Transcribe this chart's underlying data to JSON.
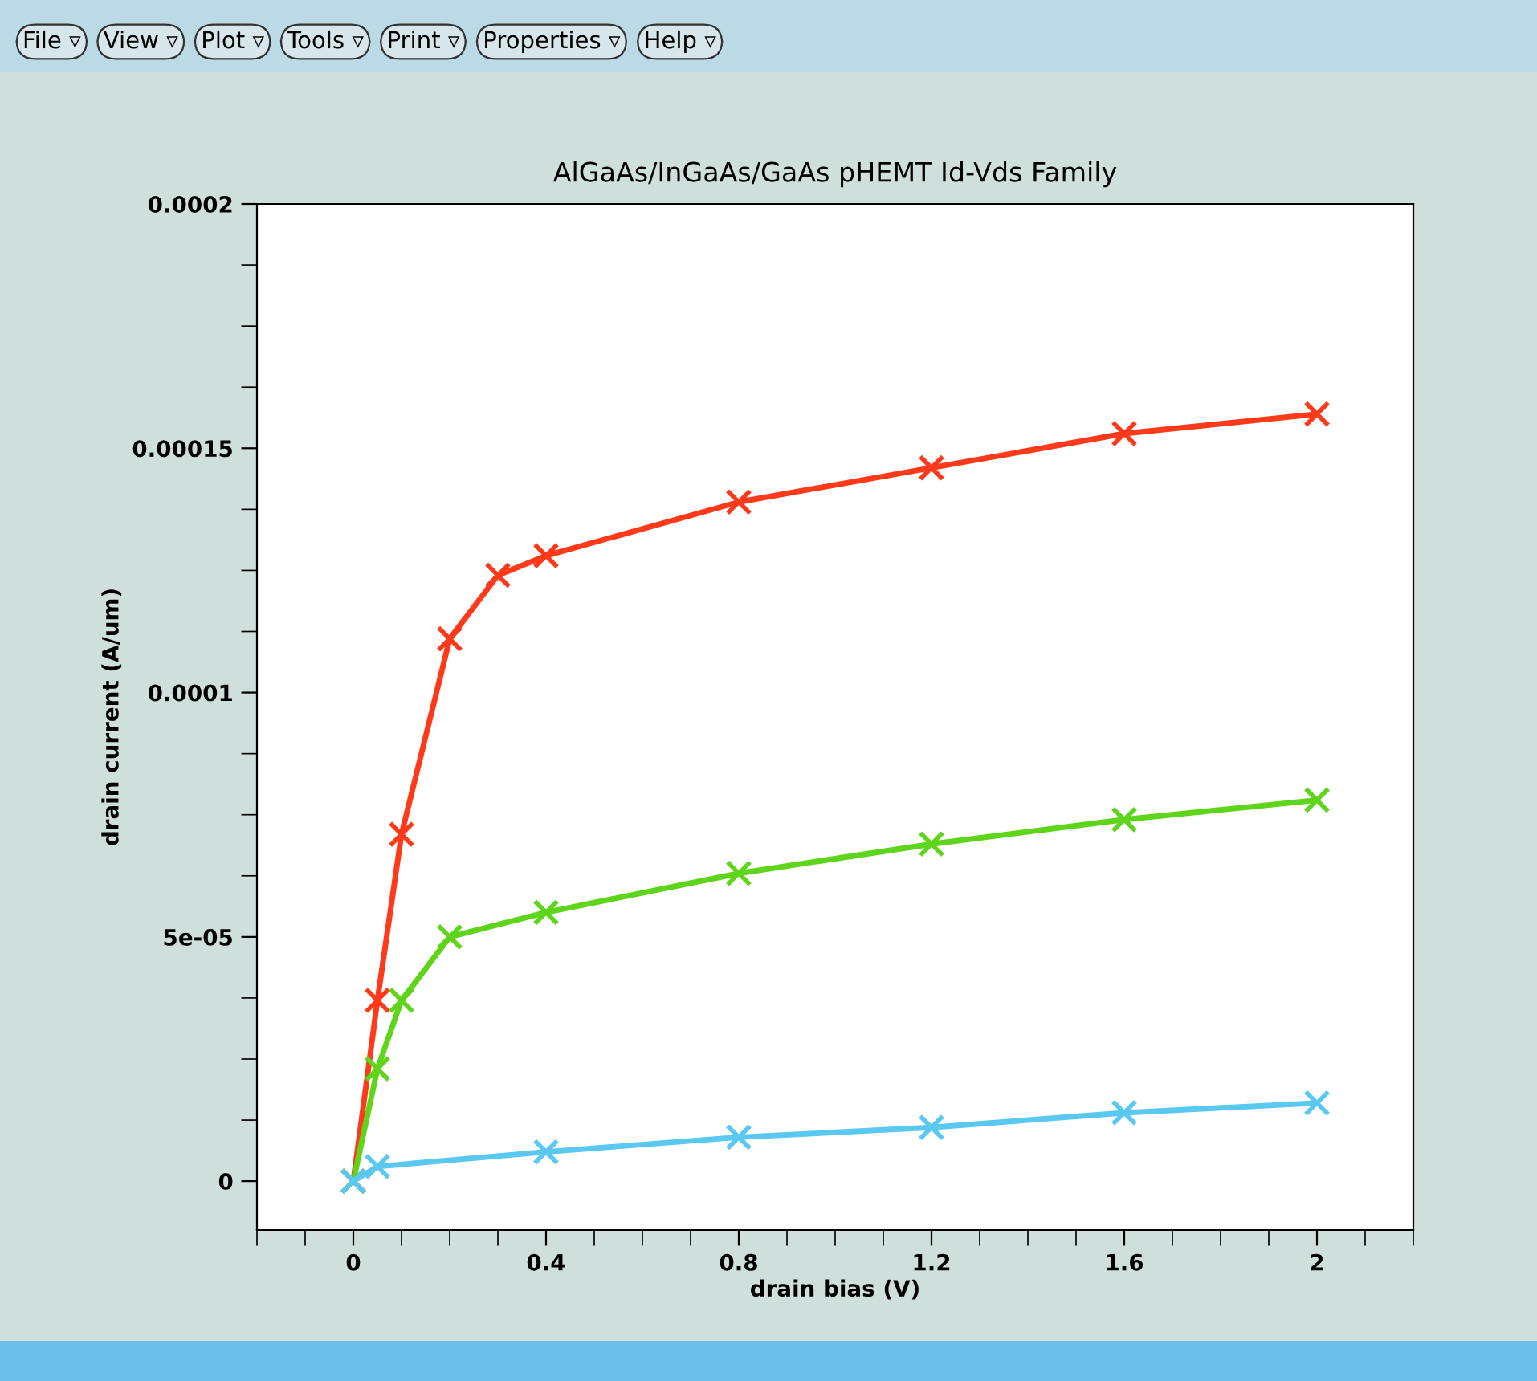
{
  "chart_data": {
    "type": "line",
    "title": "AlGaAs/InGaAs/GaAs pHEMT Id-Vds Family",
    "xlabel": "drain bias (V)",
    "ylabel": "drain current (A/um)",
    "annotations": [
      "File ▿",
      "View ▿",
      "Plot ▿",
      "Tools ▿",
      "Print ▿",
      "Properties ▿",
      "Help ▿"
    ],
    "series": [
      {
        "color": "#ff3a1a",
        "x": [
          0,
          0.05,
          0.1,
          0.2,
          0.3,
          0.4,
          0.8,
          1.2,
          1.6,
          2.0
        ],
        "values": [
          0,
          3.7e-05,
          7.1e-05,
          0.000111,
          0.000124,
          0.000128,
          0.000139,
          0.000146,
          0.000153,
          0.000157
        ]
      },
      {
        "color": "#5ed41a",
        "x": [
          0,
          0.05,
          0.1,
          0.2,
          0.4,
          0.8,
          1.2,
          1.6,
          2.0
        ],
        "values": [
          0,
          2.3e-05,
          3.7e-05,
          5e-05,
          5.5e-05,
          6.3e-05,
          6.9e-05,
          7.4e-05,
          7.8e-05
        ]
      },
      {
        "color": "#5ac8f0",
        "x": [
          0,
          0.05,
          0.4,
          0.8,
          1.2,
          1.6,
          2.0
        ],
        "values": [
          0,
          3e-06,
          6e-06,
          9e-06,
          1.1e-05,
          1.4e-05,
          1.6e-05
        ]
      }
    ],
    "xlim": [
      -0.2,
      2.2
    ],
    "xticks": [
      0,
      0.4,
      0.8,
      1.2,
      1.6,
      2
    ],
    "ylim": [
      -1e-05,
      0.0002
    ],
    "yticks": [
      0,
      {
        "value": 5e-05,
        "label": "5e-05"
      },
      {
        "value": 0.0001,
        "label": "0.0001"
      },
      {
        "value": 0.00015,
        "label": "0.00015"
      },
      {
        "value": 0.0002,
        "label": "0.0002"
      }
    ],
    "marker": "cross",
    "line_style": "solid",
    "grid": false,
    "legend": false
  }
}
